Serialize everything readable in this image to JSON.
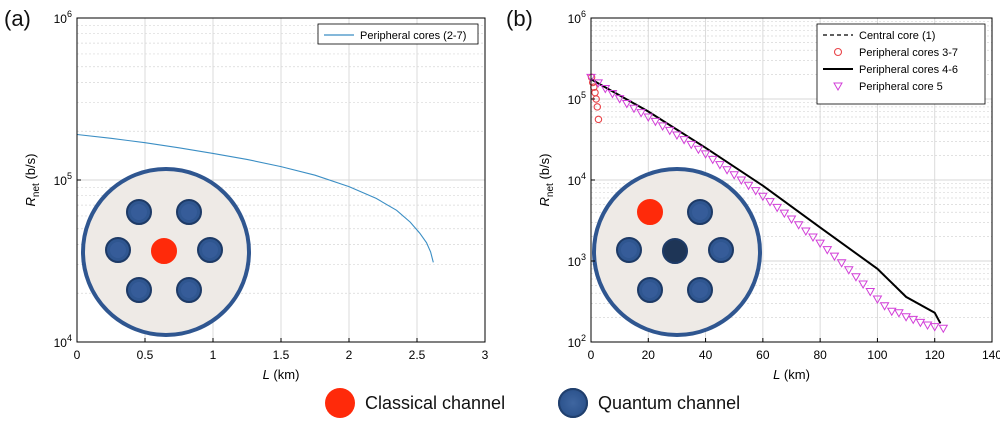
{
  "panel_labels": {
    "a": "(a)",
    "b": "(b)"
  },
  "bottom_legend": {
    "classical": "Classical channel",
    "quantum": "Quantum channel"
  },
  "colors": {
    "axis": "#000000",
    "grid": "#d7d7d7",
    "series_blue": "#3b8ec4",
    "central_dashed": "#000000",
    "peripheral_3_7": "#e8454a",
    "peripheral_4_6": "#000000",
    "peripheral_5": "#d23fd8",
    "fiber_fill": "#eeeae6",
    "fiber_border": "#2f5690",
    "core_quantum": "#2f5690",
    "core_classical": "#ff2a0a",
    "core_dark": "#1e3556"
  },
  "chart_data": [
    {
      "type": "line",
      "panel": "a",
      "xlabel_italic": "L",
      "xlabel_unit": "(km)",
      "ylabel_main": "R",
      "ylabel_sub": "net",
      "ylabel_unit": "(b/s)",
      "xlim": [
        0,
        3
      ],
      "ylim": [
        10000,
        1000000
      ],
      "yscale": "log",
      "xticks": [
        0,
        0.5,
        1,
        1.5,
        2,
        2.5,
        3
      ],
      "xtick_labels": [
        "0",
        "0.5",
        "1",
        "1.5",
        "2",
        "2.5",
        "3"
      ],
      "yticks": [
        10000,
        100000,
        1000000
      ],
      "ytick_base": "10",
      "ytick_exponents": [
        "4",
        "5",
        "6"
      ],
      "grid": true,
      "legend_position": "top-right",
      "series": [
        {
          "name": "Peripheral cores (2-7)",
          "style": "solid",
          "color": "#3b8ec4",
          "x": [
            0,
            0.25,
            0.5,
            0.75,
            1.0,
            1.25,
            1.5,
            1.75,
            2.0,
            2.2,
            2.35,
            2.45,
            2.52,
            2.57,
            2.6,
            2.62
          ],
          "y": [
            191000,
            181000,
            170000,
            158000,
            146000,
            134000,
            121000,
            107000,
            91000,
            77000,
            65000,
            55000,
            47000,
            41000,
            36000,
            31000
          ]
        }
      ],
      "inset": {
        "description_cores": 7,
        "center_core": "classical",
        "outer_cores": [
          "quantum",
          "quantum",
          "quantum",
          "quantum",
          "quantum",
          "quantum"
        ]
      }
    },
    {
      "type": "line",
      "panel": "b",
      "xlabel_italic": "L",
      "xlabel_unit": "(km)",
      "ylabel_main": "R",
      "ylabel_sub": "net",
      "ylabel_unit": "(b/s)",
      "xlim": [
        0,
        140
      ],
      "ylim": [
        100,
        1000000
      ],
      "yscale": "log",
      "xticks": [
        0,
        20,
        40,
        60,
        80,
        100,
        120,
        140
      ],
      "xtick_labels": [
        "0",
        "20",
        "40",
        "60",
        "80",
        "100",
        "120",
        "140"
      ],
      "yticks": [
        100,
        1000,
        10000,
        100000,
        1000000
      ],
      "ytick_base": "10",
      "ytick_exponents": [
        "2",
        "3",
        "4",
        "5",
        "6"
      ],
      "grid": true,
      "legend_position": "top-right",
      "series": [
        {
          "name": "Central core (1)",
          "style": "dashed",
          "color": "#000000",
          "x": [
            0,
            20,
            40,
            60,
            80,
            100,
            110,
            120,
            122
          ],
          "y": [
            175000,
            70000,
            25000,
            8500,
            2600,
            800,
            360,
            230,
            170
          ]
        },
        {
          "name": "Peripheral cores 3-7",
          "style": "markers-circle",
          "color": "#e8454a",
          "x": [
            0.2,
            0.6,
            1.0,
            1.4,
            1.8,
            2.2,
            2.6
          ],
          "y": [
            185000,
            160000,
            140000,
            120000,
            100000,
            80000,
            56000
          ]
        },
        {
          "name": "Peripheral cores 4-6",
          "style": "solid",
          "color": "#000000",
          "x": [
            0,
            20,
            40,
            60,
            80,
            100,
            110,
            120,
            122
          ],
          "y": [
            175000,
            70000,
            25000,
            8500,
            2600,
            800,
            360,
            230,
            170
          ]
        },
        {
          "name": "Peripheral core 5",
          "style": "markers-triangle",
          "color": "#d23fd8",
          "x": [
            0,
            2.5,
            5,
            7.5,
            10,
            12.5,
            15,
            17.5,
            20,
            22.5,
            25,
            27.5,
            30,
            32.5,
            35,
            37.5,
            40,
            42.5,
            45,
            47.5,
            50,
            52.5,
            55,
            57.5,
            60,
            62.5,
            65,
            67.5,
            70,
            72.5,
            75,
            77.5,
            80,
            82.5,
            85,
            87.5,
            90,
            92.5,
            95,
            97.5,
            100,
            102.5,
            105,
            107.5,
            110,
            112.5,
            115,
            117.5,
            120,
            123
          ],
          "y": [
            185000,
            158000,
            135000,
            117000,
            101000,
            88000,
            77000,
            68000,
            60000,
            53000,
            46500,
            41000,
            36000,
            31500,
            27500,
            24000,
            21000,
            18000,
            15500,
            13400,
            11600,
            10000,
            8600,
            7400,
            6300,
            5400,
            4600,
            3900,
            3300,
            2800,
            2350,
            1980,
            1660,
            1380,
            1150,
            950,
            780,
            640,
            520,
            420,
            340,
            280,
            240,
            230,
            205,
            190,
            175,
            162,
            155,
            148
          ]
        }
      ],
      "inset": {
        "description_cores": 7,
        "center_core": "dark",
        "outer_cores": [
          "classical",
          "quantum",
          "quantum",
          "quantum",
          "quantum",
          "quantum"
        ]
      }
    }
  ]
}
